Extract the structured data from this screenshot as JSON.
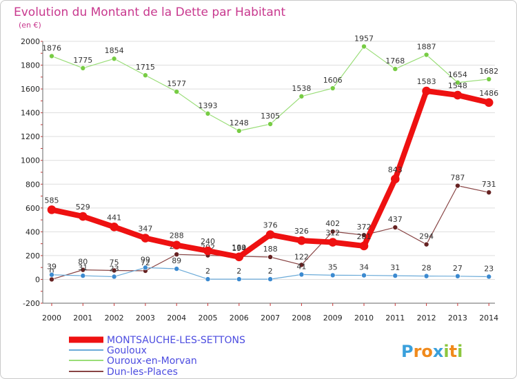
{
  "chart_data": {
    "type": "line",
    "title": "Evolution du Montant de la Dette par Habitant",
    "subtitle": "(en €)",
    "xlabel": "",
    "ylabel": "",
    "x": [
      2000,
      2001,
      2002,
      2003,
      2004,
      2005,
      2006,
      2007,
      2008,
      2009,
      2010,
      2011,
      2012,
      2013,
      2014
    ],
    "ylim": [
      -200,
      2000
    ],
    "yticks": [
      -200,
      0,
      200,
      400,
      600,
      800,
      1000,
      1200,
      1400,
      1600,
      1800,
      2000
    ],
    "grid": "horizontal",
    "legend": "bottom-left",
    "series": [
      {
        "name": "MONTSAUCHE-LES-SETTONS",
        "color": "#ee1111",
        "marker": "#ee1111",
        "weight": "thick",
        "values": [
          585,
          529,
          441,
          347,
          288,
          240,
          189,
          376,
          326,
          312,
          281,
          843,
          1583,
          1548,
          1486
        ],
        "labels": [
          "585",
          "529",
          "441",
          "347",
          "288",
          "240",
          "189",
          "376",
          "326",
          "312",
          "281",
          "843",
          "1583",
          "1548",
          "1486"
        ]
      },
      {
        "name": "Gouloux",
        "color": "#6aaad8",
        "marker": "#3c8ad0",
        "weight": "thin",
        "values": [
          39,
          31,
          23,
          99,
          89,
          2,
          2,
          2,
          41,
          35,
          34,
          31,
          28,
          27,
          23
        ],
        "labels": [
          "39",
          "31",
          "23",
          "99",
          "89",
          "2",
          "2",
          "2",
          "41",
          "35",
          "34",
          "31",
          "28",
          "27",
          "23"
        ]
      },
      {
        "name": "Ouroux-en-Morvan",
        "color": "#99dd77",
        "marker": "#77cc44",
        "weight": "thin",
        "values": [
          1876,
          1775,
          1854,
          1715,
          1577,
          1393,
          1248,
          1305,
          1538,
          1606,
          1957,
          1768,
          1887,
          1654,
          1682
        ],
        "labels": [
          "1876",
          "1775",
          "1854",
          "1715",
          "1577",
          "1393",
          "1248",
          "1305",
          "1538",
          "1606",
          "1957",
          "1768",
          "1887",
          "1654",
          "1682"
        ]
      },
      {
        "name": "Dun-les-Places",
        "color": "#884444",
        "marker": "#662222",
        "weight": "thin",
        "values": [
          0,
          80,
          75,
          72,
          210,
          202,
          194,
          188,
          122,
          402,
          372,
          437,
          294,
          787,
          731
        ],
        "labels": [
          "0",
          "80",
          "75",
          "72",
          "210",
          "202",
          "194",
          "188",
          "122",
          "402",
          "372",
          "437",
          "294",
          "787",
          "731"
        ]
      }
    ]
  },
  "logo": {
    "text": "Proxiti"
  }
}
